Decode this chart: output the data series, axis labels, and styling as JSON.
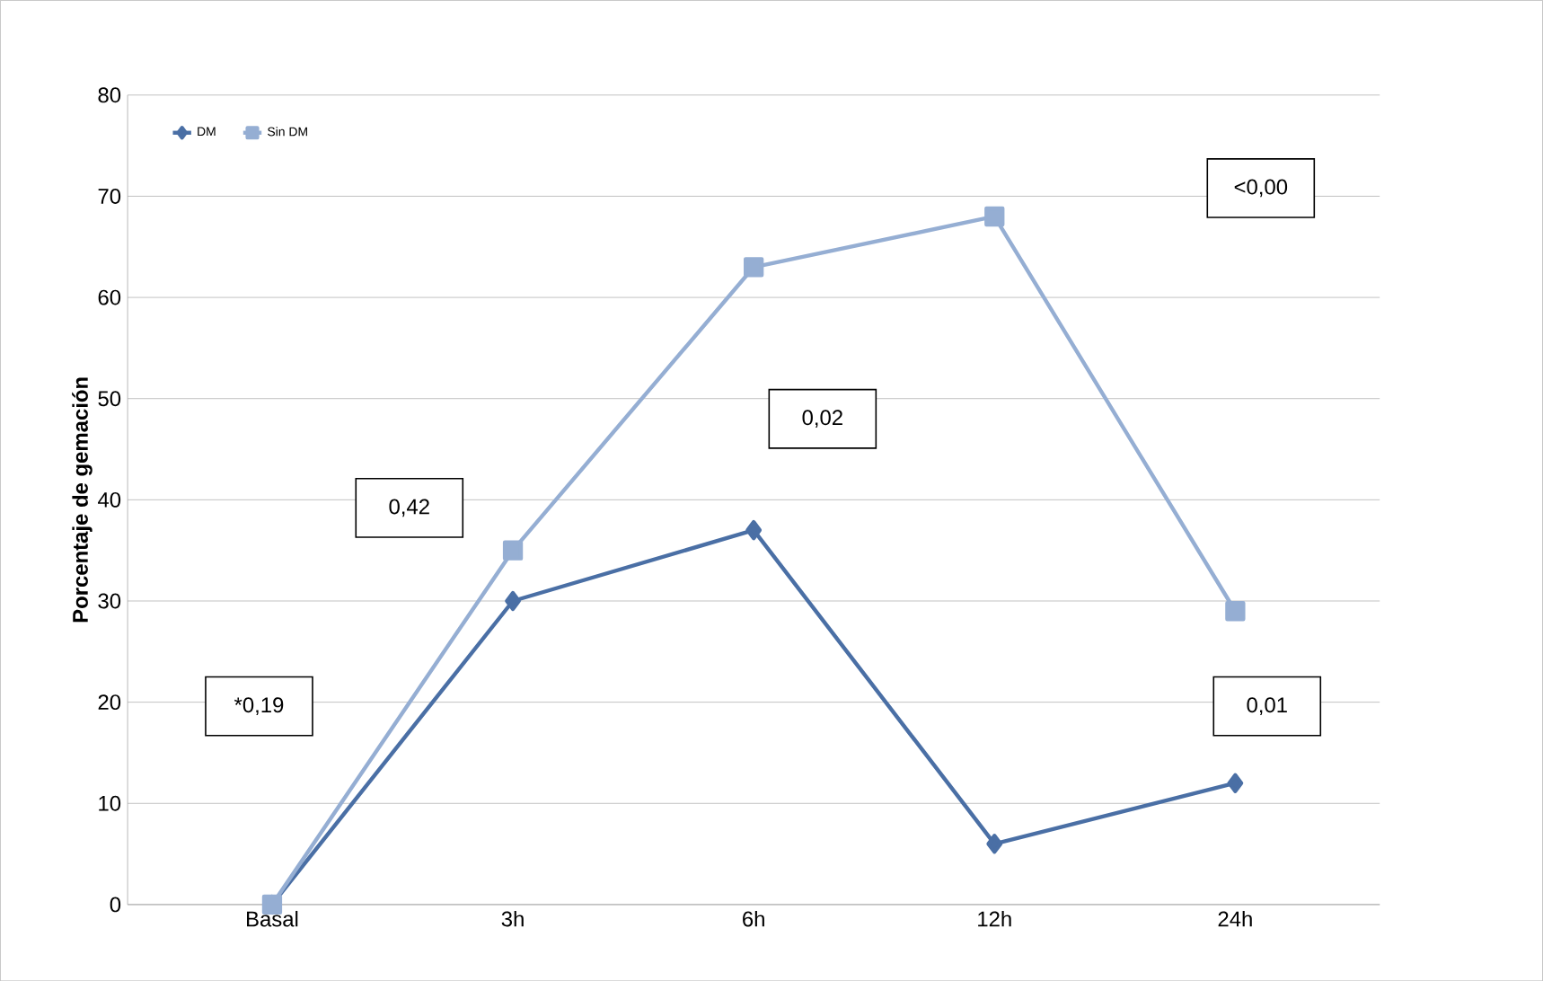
{
  "chart_data": {
    "type": "line",
    "ylabel": "Porcentaje de gemación",
    "categories": [
      "Basal",
      "3h",
      "6h",
      "12h",
      "24h"
    ],
    "series": [
      {
        "name": "DM",
        "color": "#4a6fa5",
        "marker": "diamond",
        "values": [
          0,
          30,
          37,
          6,
          12
        ]
      },
      {
        "name": "Sin DM",
        "color": "#95aed3",
        "marker": "square",
        "values": [
          0,
          35,
          63,
          68,
          29
        ]
      }
    ],
    "ylim": [
      0,
      80
    ],
    "yticks": [
      0,
      10,
      20,
      30,
      40,
      50,
      60,
      70,
      80
    ],
    "grid": "y",
    "legend": "top left",
    "line_style": "solid",
    "annotations": [
      "*0,19",
      "0,42",
      "0,02",
      "<0,00",
      "0,01"
    ]
  }
}
